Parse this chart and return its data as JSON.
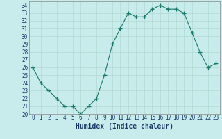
{
  "x": [
    0,
    1,
    2,
    3,
    4,
    5,
    6,
    7,
    8,
    9,
    10,
    11,
    12,
    13,
    14,
    15,
    16,
    17,
    18,
    19,
    20,
    21,
    22,
    23
  ],
  "y": [
    26,
    24,
    23,
    22,
    21,
    21,
    20,
    21,
    22,
    25,
    29,
    31,
    33,
    32.5,
    32.5,
    33.5,
    34,
    33.5,
    33.5,
    33,
    30.5,
    28,
    26,
    26.5
  ],
  "line_color": "#1a7a6a",
  "marker_color": "#1a7a6a",
  "bg_color": "#c8ecec",
  "grid_color": "#b0d8d0",
  "xlabel": "Humidex (Indice chaleur)",
  "ylim": [
    20,
    34.5
  ],
  "xlim": [
    -0.5,
    23.5
  ],
  "yticks": [
    20,
    21,
    22,
    23,
    24,
    25,
    26,
    27,
    28,
    29,
    30,
    31,
    32,
    33,
    34
  ],
  "xticks": [
    0,
    1,
    2,
    3,
    4,
    5,
    6,
    7,
    8,
    9,
    10,
    11,
    12,
    13,
    14,
    15,
    16,
    17,
    18,
    19,
    20,
    21,
    22,
    23
  ],
  "tick_fontsize": 5.5,
  "xlabel_fontsize": 7,
  "text_color": "#1a3a6a",
  "spine_color": "#888888"
}
